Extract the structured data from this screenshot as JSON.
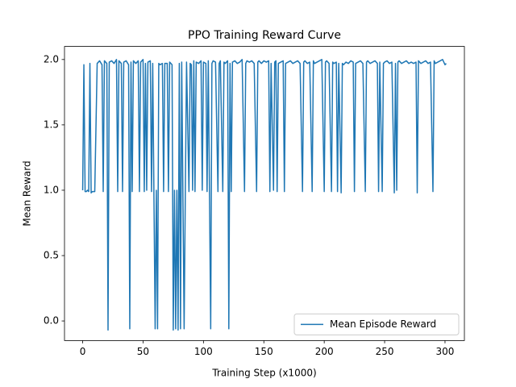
{
  "chart_data": {
    "type": "line",
    "title": "PPO Training Reward Curve",
    "x_label": "Training Step (x1000)",
    "y_label": "Mean Reward",
    "x": [
      0,
      1,
      2,
      3,
      4,
      5,
      6,
      7,
      8,
      10,
      12,
      14,
      16,
      17,
      18,
      20,
      21,
      22,
      24,
      26,
      28,
      29,
      30,
      32,
      33,
      34,
      36,
      38,
      39,
      40,
      41,
      42,
      44,
      46,
      47,
      48,
      50,
      51,
      52,
      53,
      54,
      56,
      57,
      58,
      60,
      61,
      62,
      63,
      64,
      66,
      67,
      68,
      70,
      71,
      72,
      74,
      75,
      76,
      77,
      78,
      79,
      80,
      81,
      82,
      84,
      85,
      86,
      88,
      89,
      90,
      91,
      92,
      93,
      94,
      96,
      98,
      99,
      100,
      102,
      103,
      104,
      106,
      107,
      108,
      110,
      112,
      113,
      114,
      116,
      117,
      118,
      120,
      121,
      122,
      123,
      124,
      126,
      128,
      130,
      132,
      134,
      135,
      136,
      138,
      140,
      142,
      144,
      145,
      146,
      148,
      150,
      152,
      154,
      155,
      156,
      158,
      159,
      160,
      161,
      162,
      164,
      166,
      167,
      168,
      170,
      172,
      174,
      176,
      178,
      180,
      182,
      183,
      184,
      186,
      188,
      190,
      191,
      192,
      194,
      196,
      198,
      200,
      201,
      202,
      204,
      206,
      207,
      208,
      210,
      211,
      212,
      214,
      215,
      216,
      218,
      220,
      222,
      224,
      225,
      226,
      228,
      230,
      232,
      234,
      235,
      236,
      238,
      240,
      242,
      244,
      245,
      246,
      248,
      249,
      250,
      252,
      254,
      256,
      258,
      259,
      260,
      261,
      262,
      264,
      266,
      268,
      270,
      272,
      274,
      276,
      277,
      278,
      280,
      282,
      284,
      286,
      288,
      290,
      291,
      292,
      294,
      296,
      298,
      300,
      301
    ],
    "series": [
      {
        "name": "Mean Episode Reward",
        "color": "#1f77b4",
        "values": [
          1.0,
          1.96,
          0.99,
          0.99,
          1.0,
          0.99,
          1.97,
          0.98,
          0.99,
          0.99,
          1.97,
          1.99,
          1.96,
          0.99,
          1.99,
          1.97,
          -0.07,
          1.98,
          1.99,
          1.97,
          2.0,
          0.99,
          1.99,
          1.97,
          0.99,
          1.98,
          1.99,
          1.96,
          -0.06,
          1.98,
          0.99,
          1.99,
          1.97,
          1.99,
          0.99,
          1.98,
          2.0,
          0.99,
          1.97,
          1.0,
          1.98,
          1.99,
          0.99,
          1.97,
          -0.06,
          1.0,
          -0.06,
          1.97,
          1.96,
          1.97,
          0.99,
          1.97,
          1.97,
          0.99,
          1.98,
          1.96,
          -0.07,
          1.0,
          -0.06,
          1.0,
          -0.07,
          1.97,
          -0.06,
          1.98,
          -0.06,
          1.0,
          1.98,
          0.99,
          1.97,
          1.96,
          1.0,
          1.99,
          0.99,
          1.98,
          1.97,
          1.99,
          1.0,
          1.98,
          1.97,
          0.99,
          1.99,
          -0.06,
          1.97,
          1.99,
          1.98,
          0.99,
          1.97,
          1.99,
          0.99,
          1.98,
          1.97,
          1.99,
          -0.06,
          1.97,
          0.99,
          1.98,
          1.99,
          1.97,
          1.98,
          2.0,
          0.99,
          1.97,
          1.99,
          1.98,
          1.99,
          1.97,
          0.99,
          1.98,
          1.99,
          1.97,
          1.99,
          1.98,
          1.99,
          0.99,
          1.97,
          1.0,
          1.98,
          1.99,
          0.99,
          1.97,
          1.98,
          1.99,
          0.99,
          1.97,
          1.98,
          1.99,
          1.97,
          1.98,
          1.99,
          1.97,
          0.99,
          1.98,
          1.99,
          1.97,
          1.98,
          0.99,
          1.99,
          1.97,
          1.98,
          1.99,
          2.0,
          0.99,
          1.98,
          1.99,
          1.97,
          0.99,
          1.98,
          1.97,
          1.98,
          0.99,
          1.97,
          0.98,
          1.97,
          1.96,
          1.98,
          1.97,
          1.99,
          1.98,
          0.99,
          1.97,
          1.98,
          1.99,
          1.97,
          0.99,
          1.98,
          1.99,
          1.97,
          1.98,
          1.99,
          1.97,
          0.99,
          1.98,
          0.99,
          1.97,
          1.98,
          1.99,
          1.97,
          1.98,
          0.98,
          1.97,
          1.0,
          1.98,
          1.99,
          1.97,
          1.98,
          1.99,
          1.97,
          1.98,
          1.97,
          1.98,
          0.98,
          1.99,
          1.97,
          1.98,
          1.99,
          1.97,
          1.98,
          0.99,
          1.99,
          1.97,
          1.98,
          1.99,
          2.0,
          1.96,
          1.97
        ]
      }
    ],
    "xlim": [
      -15.05,
      316.05
    ],
    "ylim": [
      -0.15,
      2.1
    ],
    "xticks": [
      0,
      50,
      100,
      150,
      200,
      250,
      300
    ],
    "yticks": [
      {
        "value": 0,
        "label": "0.0"
      },
      0.5,
      {
        "value": 1,
        "label": "1.0"
      },
      1.5,
      {
        "value": 2,
        "label": "2.0"
      }
    ],
    "legend": "lower right",
    "grid": false
  }
}
